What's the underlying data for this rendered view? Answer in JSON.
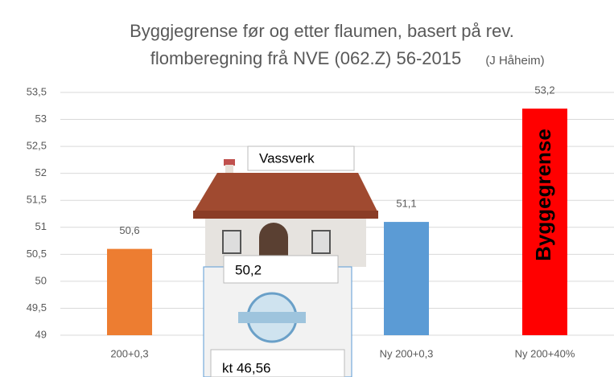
{
  "chart_data": {
    "type": "bar",
    "title": [
      "Byggjegrense før og etter flaumen, basert på rev.",
      "flomberegning frå NVE (062.Z) 56-2015"
    ],
    "title_note": "(J Håheim)",
    "categories": [
      "200+0,3",
      null,
      "Ny 200+0,3",
      "Ny 200+40%"
    ],
    "values": [
      50.6,
      50.2,
      51.1,
      53.2
    ],
    "value_labels": [
      "50,6",
      "50,2",
      "51,1",
      "53,2"
    ],
    "colors": [
      "#ed7d31",
      "#a5a5a5",
      "#5b9bd5",
      "#ff0000"
    ],
    "ylim": [
      49,
      53.5
    ],
    "yticks": [
      49,
      {
        "value": 49.5,
        "label": "49,5"
      },
      50,
      {
        "value": 50.5,
        "label": "50,5"
      },
      51,
      {
        "value": 51.5,
        "label": "51,5"
      },
      52,
      {
        "value": 52.5,
        "label": "52,5"
      },
      53,
      {
        "value": 53.5,
        "label": "53,5"
      }
    ],
    "grid": true,
    "annotations": [
      "Vassverk",
      "kt 46,56",
      "Byggegrense"
    ]
  }
}
